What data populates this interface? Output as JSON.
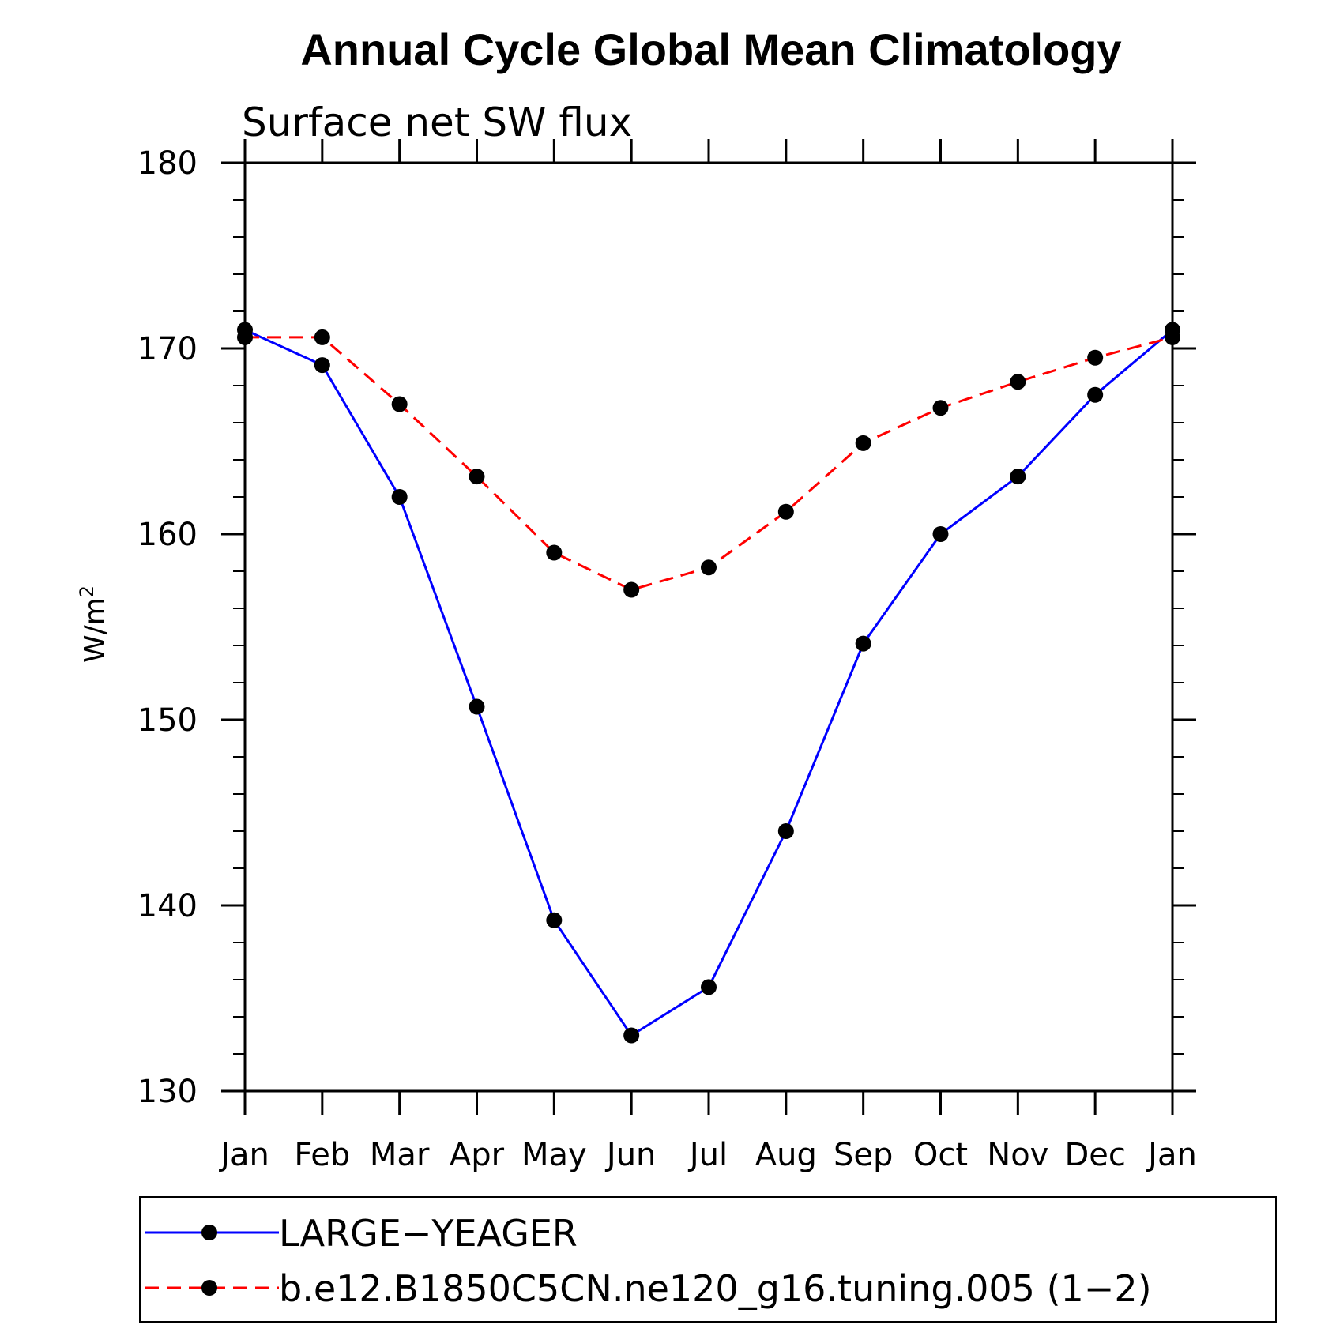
{
  "chart_data": {
    "type": "line",
    "title": "Annual Cycle Global Mean Climatology",
    "subtitle": "Surface net SW flux",
    "ylabel": "W/m",
    "ylabel_sup": "2",
    "xlabel": "",
    "categories": [
      "Jan",
      "Feb",
      "Mar",
      "Apr",
      "May",
      "Jun",
      "Jul",
      "Aug",
      "Sep",
      "Oct",
      "Nov",
      "Dec",
      "Jan"
    ],
    "ylim": [
      130,
      180
    ],
    "yticks": [
      130,
      140,
      150,
      160,
      170,
      180
    ],
    "grid": false,
    "legend_position": "bottom",
    "series": [
      {
        "name": "LARGE−YEAGER",
        "color": "#0000ff",
        "dash": "solid",
        "marker": "filled-circle",
        "values": [
          171.0,
          169.1,
          162.0,
          150.7,
          139.2,
          133.0,
          135.6,
          144.0,
          154.1,
          160.0,
          163.1,
          167.5,
          171.0
        ]
      },
      {
        "name": "b.e12.B1850C5CN.ne120_g16.tuning.005 (1−2)",
        "color": "#ff0000",
        "dash": "dashed",
        "marker": "filled-circle",
        "values": [
          170.6,
          170.6,
          167.0,
          163.1,
          159.0,
          157.0,
          158.2,
          161.2,
          164.9,
          166.8,
          168.2,
          169.5,
          170.6
        ]
      }
    ]
  }
}
